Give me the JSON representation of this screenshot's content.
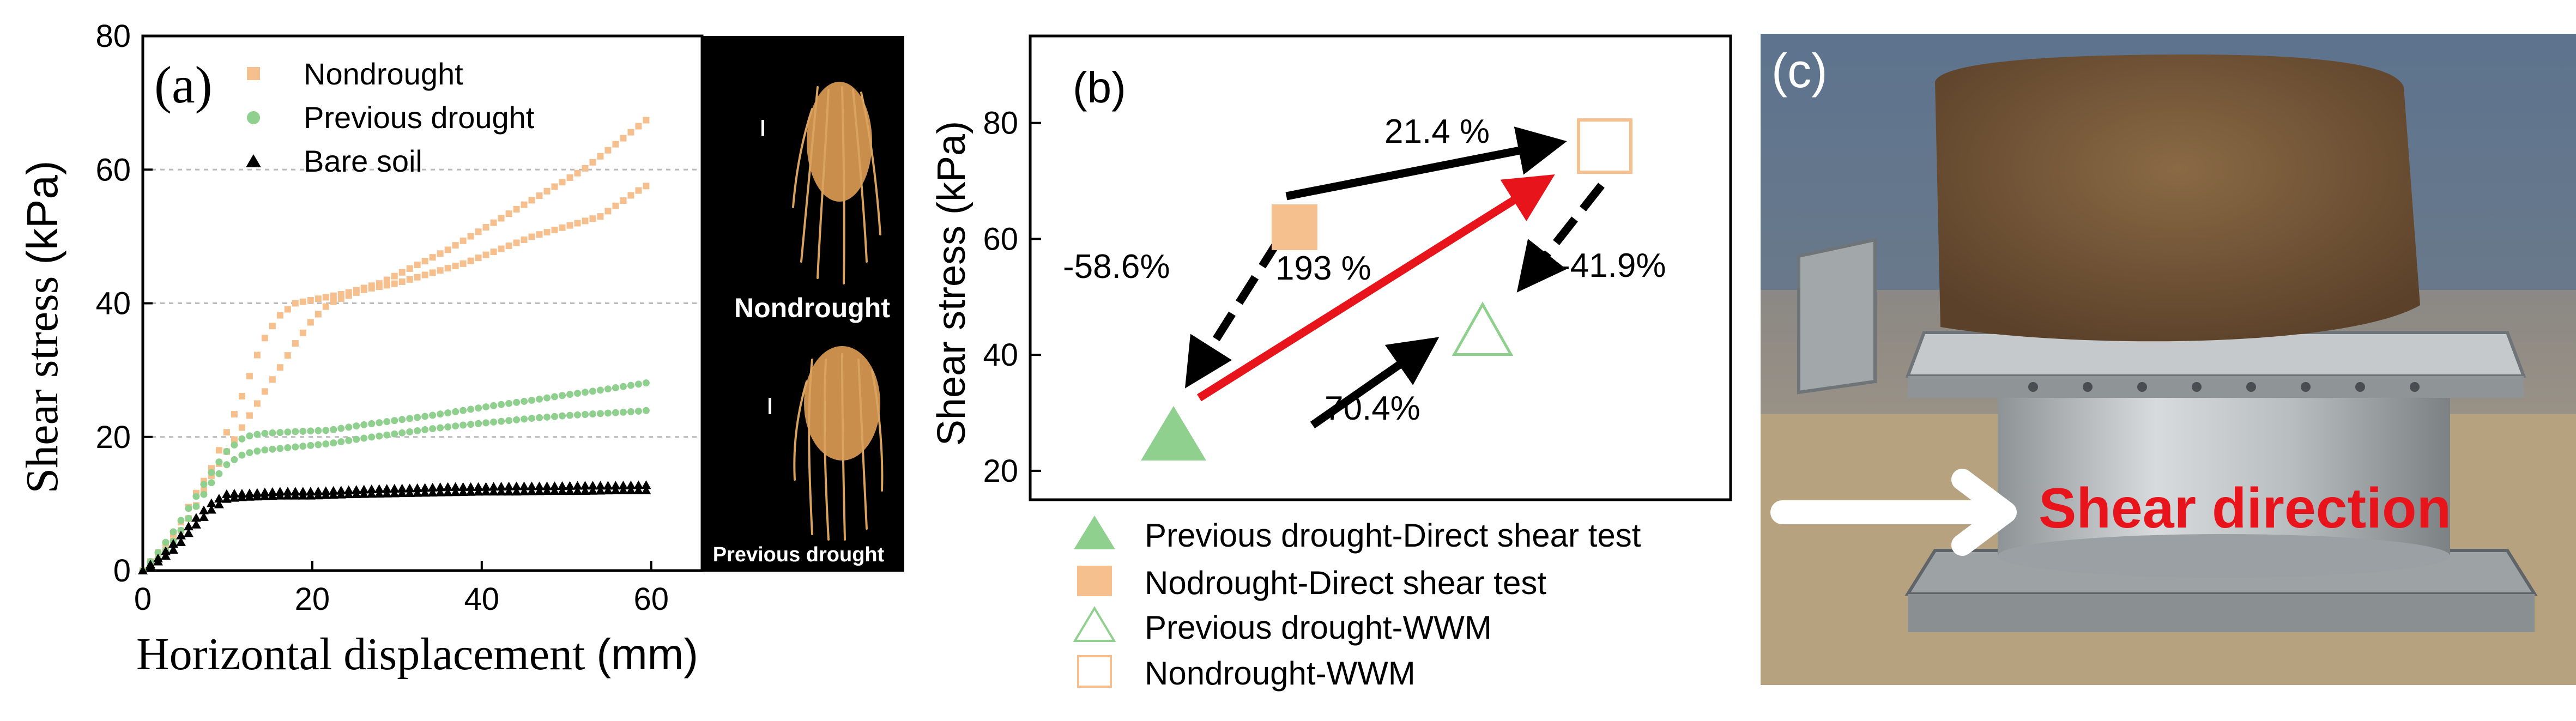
{
  "chart_data": [
    {
      "type": "scatter",
      "panel_label": "(a)",
      "xlabel": "Horizontal displacement ",
      "xlabel_unit": "(mm)",
      "ylabel": "Shear stress ",
      "ylabel_unit": "(kPa)",
      "xlim": [
        0,
        66
      ],
      "ylim": [
        0,
        80
      ],
      "xticks": [
        "0",
        "20",
        "40",
        "60"
      ],
      "yticks": [
        "0",
        "20",
        "40",
        "60",
        "80"
      ],
      "grid": "horizontal dashed",
      "legend_position": "top-left",
      "series": [
        {
          "name": "Nondrought",
          "marker": "square",
          "color": "#f6c08e",
          "curves": [
            [
              [
                0,
                0
              ],
              [
                2,
                3
              ],
              [
                4,
                6
              ],
              [
                6,
                11
              ],
              [
                8,
                15
              ],
              [
                10,
                21
              ],
              [
                12,
                27
              ],
              [
                14,
                34
              ],
              [
                16,
                38
              ],
              [
                18,
                40
              ],
              [
                20,
                40.5
              ],
              [
                24,
                41.5
              ],
              [
                28,
                43
              ],
              [
                32,
                45.5
              ],
              [
                36,
                48
              ],
              [
                40,
                51
              ],
              [
                44,
                54
              ],
              [
                48,
                57
              ],
              [
                52,
                60
              ],
              [
                56,
                64
              ],
              [
                60,
                68
              ]
            ],
            [
              [
                0,
                0
              ],
              [
                2,
                2
              ],
              [
                4,
                5
              ],
              [
                6,
                9
              ],
              [
                8,
                14
              ],
              [
                10,
                18
              ],
              [
                12,
                22
              ],
              [
                14,
                26
              ],
              [
                16,
                30
              ],
              [
                18,
                34
              ],
              [
                20,
                37.5
              ],
              [
                22,
                40
              ],
              [
                26,
                42
              ],
              [
                30,
                43
              ],
              [
                34,
                44.5
              ],
              [
                38,
                46
              ],
              [
                42,
                48
              ],
              [
                46,
                50
              ],
              [
                50,
                51.5
              ],
              [
                54,
                53
              ],
              [
                58,
                56.5
              ],
              [
                60,
                58
              ]
            ]
          ]
        },
        {
          "name": "Previous drought",
          "marker": "circle",
          "color": "#8fd08e",
          "curves": [
            [
              [
                0,
                0
              ],
              [
                2,
                3
              ],
              [
                4,
                6.5
              ],
              [
                6,
                10.5
              ],
              [
                8,
                14.5
              ],
              [
                10,
                18
              ],
              [
                12,
                20
              ],
              [
                14,
                20.5
              ],
              [
                18,
                20.8
              ],
              [
                22,
                21
              ],
              [
                26,
                21.8
              ],
              [
                30,
                22.5
              ],
              [
                34,
                23.2
              ],
              [
                38,
                24
              ],
              [
                42,
                24.8
              ],
              [
                46,
                25.5
              ],
              [
                50,
                26.3
              ],
              [
                54,
                27
              ],
              [
                58,
                27.8
              ],
              [
                60,
                28.2
              ]
            ],
            [
              [
                0,
                0
              ],
              [
                2,
                2
              ],
              [
                4,
                5
              ],
              [
                6,
                9
              ],
              [
                8,
                13
              ],
              [
                10,
                16
              ],
              [
                12,
                17.5
              ],
              [
                14,
                18
              ],
              [
                18,
                18.5
              ],
              [
                22,
                19
              ],
              [
                26,
                19.8
              ],
              [
                30,
                20.5
              ],
              [
                34,
                21.2
              ],
              [
                38,
                21.8
              ],
              [
                42,
                22.3
              ],
              [
                46,
                22.8
              ],
              [
                50,
                23.2
              ],
              [
                54,
                23.5
              ],
              [
                58,
                23.8
              ],
              [
                60,
                24
              ]
            ]
          ]
        },
        {
          "name": "Bare soil",
          "marker": "triangle",
          "color": "#000000",
          "curves": [
            [
              [
                0,
                0
              ],
              [
                2,
                2
              ],
              [
                4,
                4.5
              ],
              [
                6,
                7.5
              ],
              [
                8,
                10
              ],
              [
                10,
                11.5
              ],
              [
                12,
                11.5
              ],
              [
                16,
                11.8
              ],
              [
                20,
                11.8
              ],
              [
                24,
                12
              ],
              [
                28,
                12.2
              ],
              [
                32,
                12.3
              ],
              [
                36,
                12.5
              ],
              [
                40,
                12.5
              ],
              [
                44,
                12.6
              ],
              [
                48,
                12.6
              ],
              [
                52,
                12.7
              ],
              [
                56,
                12.7
              ],
              [
                60,
                12.8
              ]
            ],
            [
              [
                0,
                0
              ],
              [
                2,
                1.5
              ],
              [
                4,
                3.5
              ],
              [
                6,
                6.5
              ],
              [
                8,
                9
              ],
              [
                10,
                10.8
              ],
              [
                12,
                11
              ],
              [
                16,
                11.2
              ],
              [
                20,
                11.2
              ],
              [
                24,
                11.4
              ],
              [
                28,
                11.5
              ],
              [
                32,
                11.6
              ],
              [
                36,
                11.7
              ],
              [
                40,
                11.8
              ],
              [
                44,
                11.8
              ],
              [
                48,
                11.9
              ],
              [
                52,
                11.9
              ],
              [
                56,
                12
              ],
              [
                60,
                12
              ]
            ]
          ]
        }
      ],
      "inset_labels": [
        "Nondrought",
        "Previous drought"
      ]
    },
    {
      "type": "scatter",
      "panel_label": "(b)",
      "xlabel": "",
      "ylabel": "Shear stress ",
      "ylabel_unit": "(kPa)",
      "ylim": [
        15,
        95
      ],
      "yticks": [
        "20",
        "40",
        "60",
        "80"
      ],
      "points": [
        {
          "name": "Previous drought-Direct shear test",
          "marker": "triangle-filled",
          "color": "#8fd08e",
          "x": 1.0,
          "y": 26
        },
        {
          "name": "Nodrought-Direct shear test",
          "marker": "square-filled",
          "color": "#f6c08e",
          "x": 2.0,
          "y": 62
        },
        {
          "name": "Previous drought-WWM",
          "marker": "triangle-open",
          "color": "#8fd08e",
          "x": 3.0,
          "y": 44
        },
        {
          "name": "Nondrought-WWM",
          "marker": "square-open",
          "color": "#f6c08e",
          "x": 4.0,
          "y": 76
        }
      ],
      "annotations": [
        "21.4 %",
        "193 %",
        "-58.6%",
        "-41.9%",
        "70.4%"
      ]
    }
  ],
  "panel_c": {
    "label": "(c)",
    "annotation": "Shear direction",
    "annotation_color": "#e8141b"
  }
}
